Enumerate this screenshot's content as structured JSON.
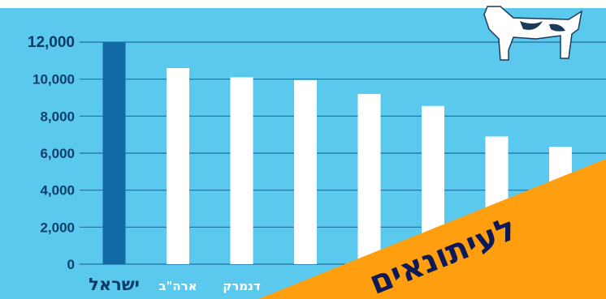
{
  "chart_data": {
    "type": "bar",
    "categories": [
      "ישראל",
      "ארה\"ב",
      "דנמרק",
      "",
      "",
      "",
      "",
      ""
    ],
    "values": [
      12000,
      10600,
      10100,
      9950,
      9200,
      8550,
      6900,
      6350
    ],
    "highlight_index": 0,
    "ylim": [
      0,
      12000
    ],
    "yticks": [
      "0",
      "2,000",
      "4,000",
      "6,000",
      "8,000",
      "10,000",
      "12,000"
    ],
    "title": "",
    "xlabel": "",
    "ylabel": "",
    "grid": true,
    "colors": {
      "bar": "#ffffff",
      "highlight": "#126aa5",
      "background": "#5bc8ee",
      "grid": "#1f6fa6"
    }
  },
  "overlay": {
    "banner_text": "לעיתונאים",
    "banner_color": "#ff9f0f",
    "text_color": "#0d1a55"
  },
  "decoration": {
    "icon": "cow-icon"
  }
}
